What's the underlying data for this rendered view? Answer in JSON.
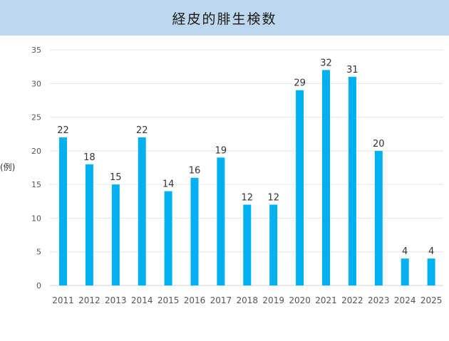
{
  "header": {
    "title": "経皮的腓生検数"
  },
  "chart_data": {
    "type": "bar",
    "title": "経皮的腓生検数",
    "xlabel": "",
    "ylabel": "(例)",
    "categories": [
      "2011",
      "2012",
      "2013",
      "2014",
      "2015",
      "2016",
      "2017",
      "2018",
      "2019",
      "2020",
      "2021",
      "2022",
      "2023",
      "2024",
      "2025"
    ],
    "values": [
      22,
      18,
      15,
      22,
      14,
      16,
      19,
      12,
      12,
      29,
      32,
      31,
      20,
      4,
      4
    ],
    "ylim": [
      0,
      35
    ],
    "yticks": [
      0,
      5,
      10,
      15,
      20,
      25,
      30,
      35
    ],
    "grid": true,
    "data_labels": true,
    "bar_color": "#00b0f0",
    "title_bar_color": "#bdd7ee"
  }
}
